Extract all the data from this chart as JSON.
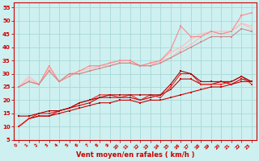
{
  "xlabel": "Vent moyen/en rafales ( km/h )",
  "bg_color": "#cef0f0",
  "grid_color": "#aad8d8",
  "xlim": [
    -0.5,
    23.5
  ],
  "ylim": [
    5,
    57
  ],
  "yticks": [
    5,
    10,
    15,
    20,
    25,
    30,
    35,
    40,
    45,
    50,
    55
  ],
  "xticks": [
    0,
    1,
    2,
    3,
    4,
    5,
    6,
    7,
    8,
    9,
    10,
    11,
    12,
    13,
    14,
    15,
    16,
    17,
    18,
    19,
    20,
    21,
    22,
    23
  ],
  "lines": [
    {
      "x": [
        0,
        1,
        2,
        3,
        4,
        5,
        6,
        7,
        8,
        9,
        10,
        11,
        12,
        13,
        14,
        15,
        16,
        17,
        18,
        19,
        20,
        21,
        22,
        23
      ],
      "y": [
        10,
        13,
        14,
        14,
        15,
        16,
        17,
        18,
        19,
        19,
        20,
        20,
        19,
        20,
        20,
        21,
        22,
        23,
        24,
        25,
        25,
        26,
        27,
        27
      ],
      "color": "#cc0000",
      "lw": 0.8,
      "marker": "s",
      "ms": 1.5
    },
    {
      "x": [
        0,
        1,
        2,
        3,
        4,
        5,
        6,
        7,
        8,
        9,
        10,
        11,
        12,
        13,
        14,
        15,
        16,
        17,
        18,
        19,
        20,
        21,
        22,
        23
      ],
      "y": [
        10,
        13,
        14,
        14,
        16,
        17,
        18,
        19,
        21,
        21,
        21,
        21,
        20,
        21,
        22,
        24,
        28,
        28,
        26,
        26,
        27,
        26,
        28,
        27
      ],
      "color": "#cc0000",
      "lw": 0.8,
      "marker": "s",
      "ms": 1.5
    },
    {
      "x": [
        0,
        1,
        2,
        3,
        4,
        5,
        6,
        7,
        8,
        9,
        10,
        11,
        12,
        13,
        14,
        15,
        16,
        17,
        18,
        19,
        20,
        21,
        22,
        23
      ],
      "y": [
        10,
        13,
        15,
        15,
        16,
        17,
        19,
        20,
        22,
        22,
        21,
        22,
        20,
        22,
        21,
        25,
        30,
        30,
        26,
        26,
        26,
        27,
        29,
        26
      ],
      "color": "#ee2222",
      "lw": 0.8,
      "marker": "s",
      "ms": 1.5
    },
    {
      "x": [
        0,
        1,
        2,
        3,
        4,
        5,
        6,
        7,
        8,
        9,
        10,
        11,
        12,
        13,
        14,
        15,
        16,
        17,
        18,
        19,
        20,
        21,
        22,
        23
      ],
      "y": [
        14,
        14,
        15,
        16,
        16,
        17,
        19,
        20,
        21,
        22,
        22,
        22,
        22,
        22,
        22,
        26,
        31,
        30,
        27,
        27,
        27,
        27,
        29,
        27
      ],
      "color": "#aa0000",
      "lw": 0.8,
      "marker": "s",
      "ms": 1.5
    },
    {
      "x": [
        0,
        1,
        2,
        3,
        4,
        5,
        6,
        7,
        8,
        9,
        10,
        11,
        12,
        13,
        14,
        15,
        16,
        17,
        18,
        19,
        20,
        21,
        22,
        23
      ],
      "y": [
        25,
        29,
        26,
        32,
        27,
        30,
        30,
        31,
        33,
        33,
        34,
        34,
        33,
        33,
        35,
        36,
        39,
        41,
        44,
        46,
        45,
        46,
        49,
        47
      ],
      "color": "#ffbbbb",
      "lw": 0.8,
      "marker": "s",
      "ms": 1.5
    },
    {
      "x": [
        0,
        1,
        2,
        3,
        4,
        5,
        6,
        7,
        8,
        9,
        10,
        11,
        12,
        13,
        14,
        15,
        16,
        17,
        18,
        19,
        20,
        21,
        22,
        23
      ],
      "y": [
        25,
        28,
        26,
        32,
        27,
        30,
        31,
        32,
        33,
        34,
        35,
        35,
        33,
        34,
        35,
        38,
        40,
        43,
        45,
        46,
        46,
        46,
        49,
        48
      ],
      "color": "#ffbbbb",
      "lw": 0.8,
      "marker": "s",
      "ms": 1.5
    },
    {
      "x": [
        0,
        1,
        2,
        3,
        4,
        5,
        6,
        7,
        8,
        9,
        10,
        11,
        12,
        13,
        14,
        15,
        16,
        17,
        18,
        19,
        20,
        21,
        22,
        23
      ],
      "y": [
        25,
        27,
        26,
        33,
        27,
        29,
        31,
        33,
        33,
        34,
        35,
        35,
        33,
        34,
        35,
        39,
        48,
        44,
        44,
        46,
        45,
        46,
        52,
        53
      ],
      "color": "#ff8888",
      "lw": 0.8,
      "marker": "s",
      "ms": 1.5
    },
    {
      "x": [
        0,
        1,
        2,
        3,
        4,
        5,
        6,
        7,
        8,
        9,
        10,
        11,
        12,
        13,
        14,
        15,
        16,
        17,
        18,
        19,
        20,
        21,
        22,
        23
      ],
      "y": [
        25,
        27,
        26,
        31,
        27,
        30,
        30,
        31,
        32,
        33,
        34,
        34,
        33,
        33,
        34,
        36,
        38,
        40,
        42,
        44,
        44,
        44,
        47,
        46
      ],
      "color": "#cc8888",
      "lw": 0.8,
      "marker": "s",
      "ms": 1.5
    }
  ],
  "tick_color": "#cc0000",
  "axis_color": "#cc0000",
  "label_color": "#cc0000",
  "xlabel_fontsize": 6,
  "ytick_fontsize": 5,
  "xtick_fontsize": 4
}
